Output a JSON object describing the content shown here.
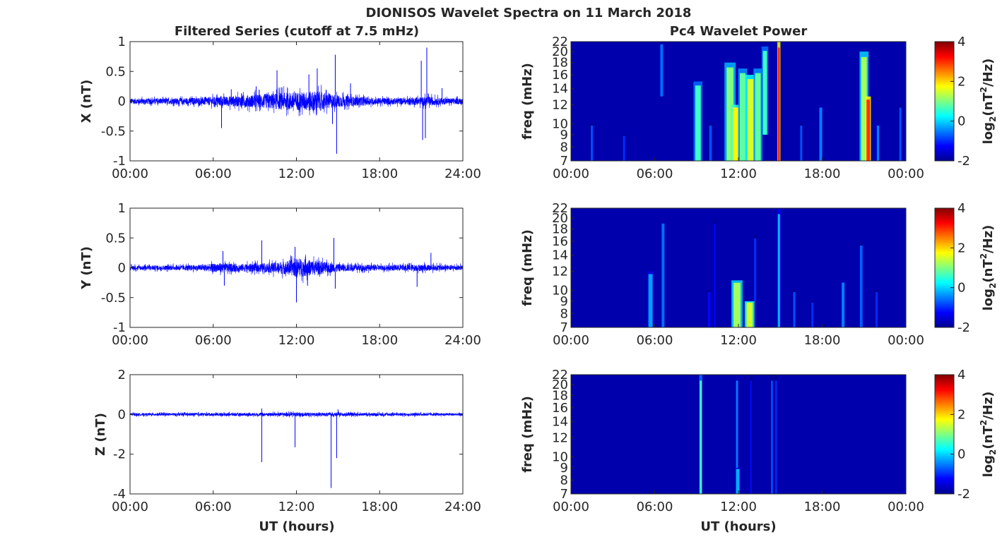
{
  "figure": {
    "title": "DIONISOS Wavelet Spectra on 11 March 2018",
    "left_title": "Filtered Series (cutoff at 7.5 mHz)",
    "right_title": "Pc4 Wavelet Power",
    "xlabel": "UT (hours)",
    "colors": {
      "series": "#0000ff",
      "axis": "#262626",
      "background": "#00008f"
    }
  },
  "chart_data": [
    {
      "type": "line",
      "panel": "X",
      "ylabel": "X (nT)",
      "ylim": [
        -1,
        1
      ],
      "xlim": [
        0,
        24
      ],
      "x_ticks": [
        "00:00",
        "06:00",
        "12:00",
        "18:00",
        "24:00"
      ],
      "y_ticks": [
        "1",
        "0.5",
        "0",
        "-0.5",
        "-1"
      ],
      "y_tick_values": [
        1,
        0.5,
        0,
        -0.5,
        -1
      ],
      "noise_envelope": [
        {
          "x": 0,
          "amp": 0.06
        },
        {
          "x": 3,
          "amp": 0.06
        },
        {
          "x": 5,
          "amp": 0.08
        },
        {
          "x": 6.5,
          "amp": 0.1
        },
        {
          "x": 8,
          "amp": 0.12
        },
        {
          "x": 9.5,
          "amp": 0.15
        },
        {
          "x": 11,
          "amp": 0.18
        },
        {
          "x": 12.5,
          "amp": 0.2
        },
        {
          "x": 13.5,
          "amp": 0.22
        },
        {
          "x": 14.5,
          "amp": 0.15
        },
        {
          "x": 16,
          "amp": 0.1
        },
        {
          "x": 18,
          "amp": 0.07
        },
        {
          "x": 20,
          "amp": 0.07
        },
        {
          "x": 21.5,
          "amp": 0.1
        },
        {
          "x": 22.5,
          "amp": 0.07
        },
        {
          "x": 24,
          "amp": 0.06
        }
      ],
      "spikes": [
        {
          "x": 6.6,
          "y": -0.45
        },
        {
          "x": 7.3,
          "y": 0.2
        },
        {
          "x": 9.1,
          "y": 0.25
        },
        {
          "x": 10.6,
          "y": 0.52
        },
        {
          "x": 12.9,
          "y": 0.45
        },
        {
          "x": 13.5,
          "y": 0.55
        },
        {
          "x": 14.6,
          "y": -0.38
        },
        {
          "x": 14.8,
          "y": 0.78
        },
        {
          "x": 14.9,
          "y": -0.88
        },
        {
          "x": 15.9,
          "y": 0.3
        },
        {
          "x": 21.0,
          "y": 0.68
        },
        {
          "x": 21.1,
          "y": -0.65
        },
        {
          "x": 21.3,
          "y": -0.62
        },
        {
          "x": 21.4,
          "y": 0.9
        },
        {
          "x": 22.5,
          "y": 0.22
        }
      ]
    },
    {
      "type": "line",
      "panel": "Y",
      "ylabel": "Y (nT)",
      "ylim": [
        -1,
        1
      ],
      "xlim": [
        0,
        24
      ],
      "x_ticks": [
        "00:00",
        "06:00",
        "12:00",
        "18:00",
        "24:00"
      ],
      "y_ticks": [
        "1",
        "0.5",
        "0",
        "-0.5",
        "-1"
      ],
      "y_tick_values": [
        1,
        0.5,
        0,
        -0.5,
        -1
      ],
      "noise_envelope": [
        {
          "x": 0,
          "amp": 0.05
        },
        {
          "x": 3,
          "amp": 0.05
        },
        {
          "x": 5,
          "amp": 0.06
        },
        {
          "x": 6.5,
          "amp": 0.1
        },
        {
          "x": 8,
          "amp": 0.08
        },
        {
          "x": 10,
          "amp": 0.1
        },
        {
          "x": 11.5,
          "amp": 0.15
        },
        {
          "x": 12,
          "amp": 0.2
        },
        {
          "x": 13.5,
          "amp": 0.15
        },
        {
          "x": 15,
          "amp": 0.08
        },
        {
          "x": 18,
          "amp": 0.06
        },
        {
          "x": 21,
          "amp": 0.07
        },
        {
          "x": 24,
          "amp": 0.05
        }
      ],
      "spikes": [
        {
          "x": 6.7,
          "y": 0.28
        },
        {
          "x": 6.8,
          "y": -0.3
        },
        {
          "x": 9.5,
          "y": 0.46
        },
        {
          "x": 11.9,
          "y": 0.35
        },
        {
          "x": 12.0,
          "y": -0.58
        },
        {
          "x": 12.8,
          "y": -0.3
        },
        {
          "x": 14.7,
          "y": 0.5
        },
        {
          "x": 14.8,
          "y": -0.35
        },
        {
          "x": 20.7,
          "y": -0.32
        },
        {
          "x": 21.7,
          "y": 0.25
        }
      ]
    },
    {
      "type": "line",
      "panel": "Z",
      "ylabel": "Z (nT)",
      "ylim": [
        -4,
        2
      ],
      "xlim": [
        0,
        24
      ],
      "x_ticks": [
        "00:00",
        "06:00",
        "12:00",
        "18:00",
        "24:00"
      ],
      "y_ticks": [
        "2",
        "0",
        "-2",
        "-4"
      ],
      "y_tick_values": [
        2,
        0,
        -2,
        -4
      ],
      "noise_envelope": [
        {
          "x": 0,
          "amp": 0.08
        },
        {
          "x": 9,
          "amp": 0.1
        },
        {
          "x": 12,
          "amp": 0.12
        },
        {
          "x": 15,
          "amp": 0.1
        },
        {
          "x": 24,
          "amp": 0.08
        }
      ],
      "spikes": [
        {
          "x": 9.5,
          "y": 0.3
        },
        {
          "x": 9.5,
          "y": -2.4
        },
        {
          "x": 11.9,
          "y": -1.65
        },
        {
          "x": 14.5,
          "y": -3.7
        },
        {
          "x": 14.9,
          "y": -2.2
        },
        {
          "x": 15.0,
          "y": 0.25
        }
      ]
    },
    {
      "type": "heatmap",
      "panel": "X",
      "ylabel": "freq (mHz)",
      "colorbar_label": "log2(nT2/Hz)",
      "clim": [
        -2,
        4
      ],
      "xlim": [
        0,
        24
      ],
      "ylim_mHz": [
        7,
        22
      ],
      "x_ticks": [
        "00:00",
        "06:00",
        "12:00",
        "18:00",
        "00:00"
      ],
      "y_ticks": [
        "22",
        "20",
        "18",
        "16",
        "14",
        "12",
        "10",
        "9",
        "8",
        "7"
      ],
      "y_tick_values": [
        22,
        20,
        18,
        16,
        14,
        12,
        10,
        9,
        8,
        7
      ],
      "colorbar_ticks": [
        "4",
        "2",
        "0",
        "-2"
      ],
      "colorbar_tick_values": [
        4,
        2,
        0,
        -2
      ],
      "features": [
        {
          "t": 1.5,
          "f0": 7,
          "f1": 10,
          "v": -0.8,
          "w": 0.08
        },
        {
          "t": 3.8,
          "f0": 7,
          "f1": 9,
          "v": -1.0,
          "w": 0.08
        },
        {
          "t": 6.5,
          "f0": 13,
          "f1": 22,
          "v": -0.6,
          "w": 0.1
        },
        {
          "t": 9.1,
          "f0": 7,
          "f1": 15,
          "v": 0.6,
          "w": 0.2
        },
        {
          "t": 10.0,
          "f0": 7,
          "f1": 10,
          "v": -0.8,
          "w": 0.1
        },
        {
          "t": 11.4,
          "f0": 7,
          "f1": 18,
          "v": 1.0,
          "w": 0.25
        },
        {
          "t": 11.8,
          "f0": 7,
          "f1": 12,
          "v": 1.8,
          "w": 0.2
        },
        {
          "t": 12.3,
          "f0": 7,
          "f1": 17,
          "v": 0.8,
          "w": 0.2
        },
        {
          "t": 12.9,
          "f0": 7,
          "f1": 16,
          "v": 1.5,
          "w": 0.25
        },
        {
          "t": 13.4,
          "f0": 7,
          "f1": 17,
          "v": 0.8,
          "w": 0.2
        },
        {
          "t": 13.9,
          "f0": 9,
          "f1": 21,
          "v": 0.6,
          "w": 0.15
        },
        {
          "t": 14.9,
          "f0": 7,
          "f1": 22,
          "v": 3.0,
          "w": 0.07
        },
        {
          "t": 16.5,
          "f0": 7,
          "f1": 10,
          "v": -0.8,
          "w": 0.08
        },
        {
          "t": 17.9,
          "f0": 7,
          "f1": 12,
          "v": -0.5,
          "w": 0.1
        },
        {
          "t": 21.0,
          "f0": 7,
          "f1": 20,
          "v": 1.2,
          "w": 0.2
        },
        {
          "t": 21.3,
          "f0": 7,
          "f1": 13,
          "v": 3.0,
          "w": 0.12
        },
        {
          "t": 22.0,
          "f0": 7,
          "f1": 10,
          "v": -0.5,
          "w": 0.08
        },
        {
          "t": 23.6,
          "f0": 7,
          "f1": 12,
          "v": -0.8,
          "w": 0.08
        }
      ]
    },
    {
      "type": "heatmap",
      "panel": "Y",
      "ylabel": "freq (mHz)",
      "colorbar_label": "log2(nT2/Hz)",
      "clim": [
        -2,
        4
      ],
      "xlim": [
        0,
        24
      ],
      "ylim_mHz": [
        7,
        22
      ],
      "x_ticks": [
        "00:00",
        "06:00",
        "12:00",
        "18:00",
        "00:00"
      ],
      "y_ticks": [
        "22",
        "20",
        "18",
        "16",
        "14",
        "12",
        "10",
        "9",
        "8",
        "7"
      ],
      "y_tick_values": [
        22,
        20,
        18,
        16,
        14,
        12,
        10,
        9,
        8,
        7
      ],
      "colorbar_ticks": [
        "4",
        "2",
        "0",
        "-2"
      ],
      "colorbar_tick_values": [
        4,
        2,
        0,
        -2
      ],
      "features": [
        {
          "t": 5.7,
          "f0": 7,
          "f1": 12,
          "v": -0.3,
          "w": 0.15
        },
        {
          "t": 6.6,
          "f0": 7,
          "f1": 20,
          "v": -0.6,
          "w": 0.1
        },
        {
          "t": 9.9,
          "f0": 7,
          "f1": 10,
          "v": -1.2,
          "w": 0.1
        },
        {
          "t": 10.3,
          "f0": 7,
          "f1": 20,
          "v": -1.3,
          "w": 0.07
        },
        {
          "t": 11.9,
          "f0": 7,
          "f1": 11,
          "v": 1.2,
          "w": 0.25
        },
        {
          "t": 12.8,
          "f0": 7,
          "f1": 9,
          "v": 1.5,
          "w": 0.22
        },
        {
          "t": 13.2,
          "f0": 9,
          "f1": 17,
          "v": -1.0,
          "w": 0.08
        },
        {
          "t": 14.9,
          "f0": 7,
          "f1": 22,
          "v": -0.2,
          "w": 0.08
        },
        {
          "t": 16.0,
          "f0": 7,
          "f1": 10,
          "v": -0.8,
          "w": 0.08
        },
        {
          "t": 17.3,
          "f0": 7,
          "f1": 9,
          "v": -1.0,
          "w": 0.08
        },
        {
          "t": 19.5,
          "f0": 7,
          "f1": 11,
          "v": -0.5,
          "w": 0.1
        },
        {
          "t": 20.8,
          "f0": 7,
          "f1": 16,
          "v": -0.7,
          "w": 0.1
        },
        {
          "t": 21.9,
          "f0": 7,
          "f1": 10,
          "v": -1.0,
          "w": 0.08
        }
      ]
    },
    {
      "type": "heatmap",
      "panel": "Z",
      "ylabel": "freq (mHz)",
      "colorbar_label": "log2(nT2/Hz)",
      "clim": [
        -2,
        4
      ],
      "xlim": [
        0,
        24
      ],
      "ylim_mHz": [
        7,
        22
      ],
      "x_ticks": [
        "00:00",
        "06:00",
        "12:00",
        "18:00",
        "00:00"
      ],
      "y_ticks": [
        "22",
        "20",
        "18",
        "16",
        "14",
        "12",
        "10",
        "9",
        "8",
        "7"
      ],
      "y_tick_values": [
        22,
        20,
        18,
        16,
        14,
        12,
        10,
        9,
        8,
        7
      ],
      "colorbar_ticks": [
        "4",
        "2",
        "0",
        "-2"
      ],
      "colorbar_tick_values": [
        4,
        2,
        0,
        -2
      ],
      "features": [
        {
          "t": 9.3,
          "f0": 7,
          "f1": 22,
          "v": 0.6,
          "w": 0.07
        },
        {
          "t": 11.9,
          "f0": 7,
          "f1": 22,
          "v": -0.5,
          "w": 0.07
        },
        {
          "t": 11.95,
          "f0": 7,
          "f1": 9,
          "v": -0.2,
          "w": 0.12
        },
        {
          "t": 12.9,
          "f0": 7,
          "f1": 22,
          "v": -1.2,
          "w": 0.06
        },
        {
          "t": 14.4,
          "f0": 7,
          "f1": 22,
          "v": -0.8,
          "w": 0.07
        },
        {
          "t": 14.7,
          "f0": 7,
          "f1": 22,
          "v": -1.0,
          "w": 0.06
        }
      ]
    }
  ]
}
